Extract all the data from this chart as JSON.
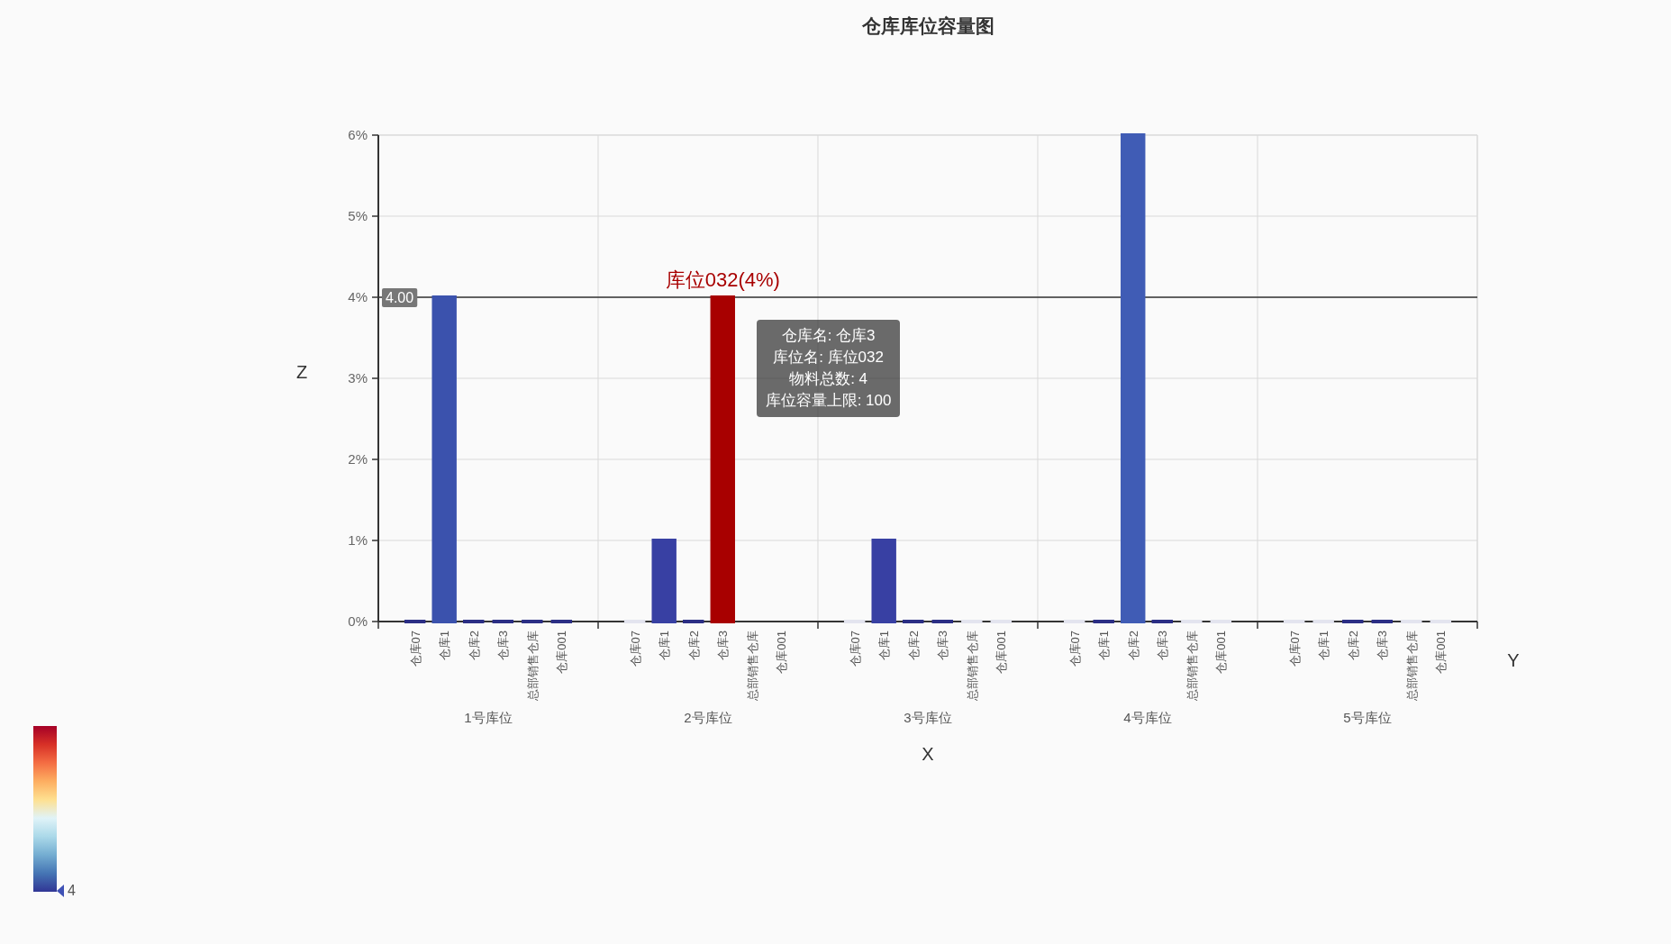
{
  "chart_data": {
    "type": "bar",
    "title": "仓库库位容量图",
    "xlabel": "X",
    "ylabel": "Z",
    "legend_title": "Y",
    "categories": [
      "1号库位",
      "2号库位",
      "3号库位",
      "4号库位",
      "5号库位"
    ],
    "series": [
      {
        "name": "仓库07",
        "values": [
          0,
          0,
          0,
          0,
          0
        ],
        "colors": [
          "#2b2e85",
          "#e3e4ef",
          "#e3e4ef",
          "#e3e4ef",
          "#e3e4ef"
        ]
      },
      {
        "name": "仓库1",
        "values": [
          4,
          1,
          1,
          0,
          0
        ],
        "colors": [
          "#3b52ad",
          "#3840a3",
          "#3840a3",
          "#2b2e85",
          "#e3e4ef"
        ]
      },
      {
        "name": "仓库2",
        "values": [
          0,
          0,
          0,
          6,
          0
        ],
        "colors": [
          "#2b2e85",
          "#2b2e85",
          "#2b2e85",
          "#405cb5",
          "#2b2e85"
        ]
      },
      {
        "name": "仓库3",
        "values": [
          0,
          4,
          0,
          0,
          0
        ],
        "colors": [
          "#2b2e85",
          "#a80000",
          "#2b2e85",
          "#2b2e85",
          "#2b2e85"
        ],
        "value_labels": [
          null,
          "库位032(4%)",
          null,
          null,
          null
        ]
      },
      {
        "name": "总部销售仓库",
        "values": [
          0,
          null,
          0,
          0,
          0
        ],
        "colors": [
          "#2b2e85",
          null,
          "#e3e4ef",
          "#e3e4ef",
          "#e3e4ef"
        ]
      },
      {
        "name": "仓库001",
        "values": [
          0,
          null,
          0,
          0,
          0
        ],
        "colors": [
          "#2b2e85",
          null,
          "#e3e4ef",
          "#e3e4ef",
          "#e3e4ef"
        ]
      }
    ],
    "ylim": [
      0,
      6
    ],
    "yticks": [
      {
        "value": 0,
        "label": "0%"
      },
      {
        "value": 1,
        "label": "1%"
      },
      {
        "value": 2,
        "label": "2%"
      },
      {
        "value": 3,
        "label": "3%"
      },
      {
        "value": 4,
        "label": "4%"
      },
      {
        "value": 5,
        "label": "5%"
      },
      {
        "value": 6,
        "label": "6%"
      }
    ],
    "grid": true,
    "ref_lines": [
      {
        "axis": "y",
        "value": 4,
        "label": "4.00",
        "color": "#333333"
      }
    ],
    "annotations": [
      "仓库名: 仓库3\n库位名: 库位032\n物料总数: 4\n库位容量上限: 100",
      "4"
    ]
  }
}
